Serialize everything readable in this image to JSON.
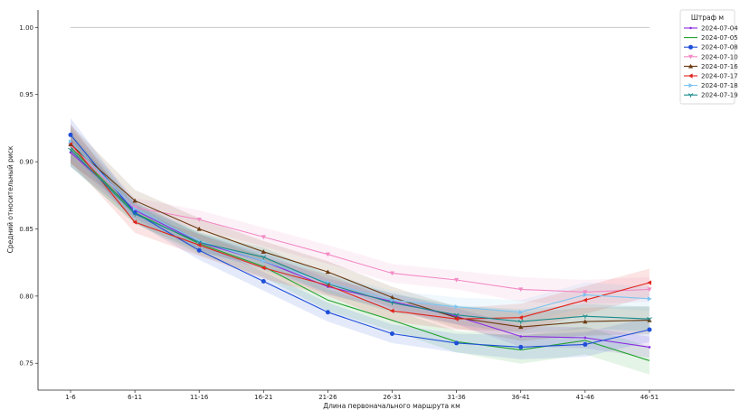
{
  "chart_data": {
    "type": "line",
    "xlabel": "Длина первоначального маршрута км",
    "ylabel": "Средний относительный риск",
    "categories": [
      "1-6",
      "6-11",
      "11-16",
      "16-21",
      "21-26",
      "26-31",
      "31-36",
      "36-41",
      "41-46",
      "46-51"
    ],
    "y_ticks": [
      "0.75",
      "0.80",
      "0.85",
      "0.90",
      "0.95",
      "1.00"
    ],
    "ylim": [
      0.73,
      1.013
    ],
    "reference_line": 1.0,
    "grid": false,
    "legend": {
      "title": "Штраф м",
      "placement": "top-right"
    },
    "series": [
      {
        "name": "2024-07-04",
        "color": "#8a2be2",
        "marker": "dot-small",
        "values": [
          0.907,
          0.864,
          0.84,
          0.826,
          0.807,
          0.796,
          0.785,
          0.77,
          0.769,
          0.762
        ],
        "band": 0.006
      },
      {
        "name": "2024-07-05",
        "color": "#22a22e",
        "marker": "none",
        "values": [
          0.911,
          0.862,
          0.839,
          0.822,
          0.797,
          0.782,
          0.766,
          0.76,
          0.767,
          0.752
        ],
        "band": 0.008
      },
      {
        "name": "2024-07-08",
        "color": "#1f4fd8",
        "marker": "circle",
        "values": [
          0.92,
          0.862,
          0.834,
          0.811,
          0.788,
          0.772,
          0.765,
          0.762,
          0.764,
          0.775
        ],
        "band": 0.007
      },
      {
        "name": "2024-07-10",
        "color": "#f28ac4",
        "marker": "triangle-down",
        "values": [
          0.912,
          0.866,
          0.857,
          0.844,
          0.831,
          0.817,
          0.812,
          0.805,
          0.803,
          0.805
        ],
        "band": 0.007
      },
      {
        "name": "2024-07-16",
        "color": "#6b3a10",
        "marker": "triangle-up",
        "values": [
          0.913,
          0.871,
          0.85,
          0.833,
          0.818,
          0.799,
          0.784,
          0.777,
          0.781,
          0.782
        ],
        "band": 0.008
      },
      {
        "name": "2024-07-17",
        "color": "#e0241c",
        "marker": "triangle-left",
        "values": [
          0.914,
          0.855,
          0.838,
          0.821,
          0.808,
          0.789,
          0.783,
          0.784,
          0.797,
          0.81
        ],
        "band": 0.008
      },
      {
        "name": "2024-07-18",
        "color": "#7cc4f0",
        "marker": "triangle-right",
        "values": [
          0.915,
          0.865,
          0.841,
          0.826,
          0.81,
          0.797,
          0.792,
          0.788,
          0.801,
          0.798
        ],
        "band": 0.007
      },
      {
        "name": "2024-07-19",
        "color": "#1a8c8c",
        "marker": "tri-down",
        "values": [
          0.909,
          0.861,
          0.84,
          0.829,
          0.809,
          0.795,
          0.786,
          0.781,
          0.785,
          0.783
        ],
        "band": 0.007
      }
    ]
  }
}
